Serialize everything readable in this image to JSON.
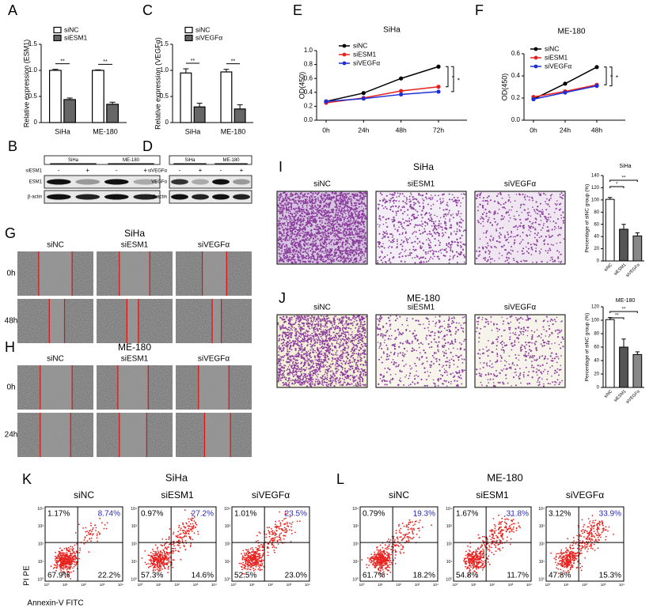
{
  "chart_data": [
    {
      "label": "A",
      "type": "bar",
      "ylabel": "Relative expression (ESM1)",
      "categories": [
        "SiHa",
        "ME-180"
      ],
      "series": [
        {
          "name": "siNC",
          "color": "#ffffff",
          "values": [
            1.0,
            1.0
          ],
          "errors": [
            0.02,
            0.01
          ]
        },
        {
          "name": "siESM1",
          "color": "#666666",
          "values": [
            0.44,
            0.35
          ],
          "errors": [
            0.03,
            0.04
          ]
        }
      ],
      "ylim": [
        0,
        1.5
      ],
      "yticks": [
        0,
        0.5,
        {
          "value": 1,
          "label": "1.0"
        },
        1.5
      ],
      "annotations": [
        "**",
        "**"
      ]
    },
    {
      "label": "C",
      "type": "bar",
      "ylabel": "Relative expression (VEGFα)",
      "categories": [
        "SiHa",
        "ME-180"
      ],
      "series": [
        {
          "name": "siNC",
          "color": "#ffffff",
          "values": [
            0.95,
            0.97
          ],
          "errors": [
            0.08,
            0.05
          ]
        },
        {
          "name": "siVEGFα",
          "color": "#666666",
          "values": [
            0.3,
            0.26
          ],
          "errors": [
            0.07,
            0.08
          ]
        }
      ],
      "ylim": [
        0,
        1.5
      ],
      "yticks": [
        0,
        0.5,
        {
          "value": 1,
          "label": "1.0"
        },
        1.5
      ],
      "annotations": [
        "**",
        "**"
      ]
    },
    {
      "label": "E",
      "type": "line",
      "title": "SiHa",
      "ylabel": "OD(450)",
      "categories": [
        "0h",
        "24h",
        "48h",
        "72h"
      ],
      "series": [
        {
          "name": "siNC",
          "color": "#000000",
          "values": [
            0.27,
            0.39,
            0.6,
            0.77
          ]
        },
        {
          "name": "siESM1",
          "color": "#e8221c",
          "values": [
            0.25,
            0.32,
            0.42,
            0.48
          ]
        },
        {
          "name": "siVEGFα",
          "color": "#1f2fd6",
          "values": [
            0.27,
            0.31,
            0.37,
            0.41
          ]
        }
      ],
      "ylim": [
        0,
        1
      ],
      "yticks": [
        {
          "value": 0,
          "label": "0.0"
        },
        0.2,
        0.4,
        0.6,
        0.8,
        {
          "value": 1,
          "label": "1.0"
        }
      ],
      "annotations": [
        "*",
        "*"
      ]
    },
    {
      "label": "F",
      "type": "line",
      "title": "ME-180",
      "ylabel": "OD(450)",
      "categories": [
        "0h",
        "24h",
        "48h"
      ],
      "series": [
        {
          "name": "siNC",
          "color": "#000000",
          "values": [
            0.19,
            0.33,
            0.48
          ]
        },
        {
          "name": "siESM1",
          "color": "#e8221c",
          "values": [
            0.21,
            0.26,
            0.32
          ]
        },
        {
          "name": "siVEGFα",
          "color": "#1f2fd6",
          "values": [
            0.19,
            0.25,
            0.31
          ]
        }
      ],
      "ylim": [
        0,
        0.6
      ],
      "yticks": [
        {
          "value": 0,
          "label": "0.0"
        },
        0.2,
        0.4,
        0.6
      ],
      "annotations": [
        "*",
        "*"
      ]
    },
    {
      "type": "bar",
      "title": "SiHa",
      "ylabel": "Percentage of siNC group (%)",
      "categories": [
        "siNC",
        "siESM1",
        "siVEGFα"
      ],
      "values": [
        101,
        52,
        41
      ],
      "errors": [
        3,
        8,
        5
      ],
      "colors": [
        "#ffffff",
        "#555555",
        "#888888"
      ],
      "ylim": [
        0,
        140
      ],
      "yticks": [
        0,
        20,
        40,
        60,
        80,
        100,
        120,
        140
      ],
      "annotations": [
        "*",
        "**"
      ]
    },
    {
      "type": "bar",
      "title": "ME-180",
      "ylabel": "Percentage of siNC group (%)",
      "categories": [
        "siNC",
        "siESM1",
        "siVEGFα"
      ],
      "values": [
        101,
        60,
        49
      ],
      "errors": [
        3,
        12,
        4
      ],
      "colors": [
        "#ffffff",
        "#555555",
        "#888888"
      ],
      "ylim": [
        0,
        120
      ],
      "yticks": [
        0,
        20,
        40,
        60,
        80,
        100,
        120
      ],
      "annotations": [
        "**",
        "**"
      ]
    }
  ],
  "blots": [
    {
      "label": "B",
      "treatment": "siESM1",
      "groups": [
        "SiHa",
        "ME-180"
      ],
      "signs": [
        "-",
        "+",
        "-",
        "+"
      ],
      "proteins": [
        "ESM1",
        "β-actin"
      ]
    },
    {
      "label": "D",
      "treatment": "siVEGFα",
      "groups": [
        "SiHa",
        "ME-180"
      ],
      "signs": [
        "-",
        "+",
        "-",
        "+"
      ],
      "proteins": [
        "VEGFα",
        "β-actin"
      ]
    }
  ],
  "migration": [
    {
      "label": "G",
      "title": "SiHa",
      "conditions": [
        "siNC",
        "siESM1",
        "siVEGFα"
      ],
      "times": [
        "0h",
        "48h"
      ]
    },
    {
      "label": "H",
      "title": "ME-180",
      "conditions": [
        "siNC",
        "siESM1",
        "siVEGFα"
      ],
      "times": [
        "0h",
        "24h"
      ]
    }
  ],
  "invasion": [
    {
      "label": "I",
      "title": "SiHa",
      "conditions": [
        "siNC",
        "siESM1",
        "siVEGFα"
      ]
    },
    {
      "label": "J",
      "title": "ME-180",
      "conditions": [
        "siNC",
        "siESM1",
        "siVEGFα"
      ]
    }
  ],
  "apoptosis": [
    {
      "label": "K",
      "title": "SiHa",
      "conditions": [
        "siNC",
        "siESM1",
        "siVEGFα"
      ],
      "quadrants": [
        [
          "1.17%",
          "8.74%",
          "67.9%",
          "22.2%"
        ],
        [
          "0.97%",
          "27.2%",
          "57.3%",
          "14.6%"
        ],
        [
          "1.01%",
          "23.5%",
          "52.5%",
          "23.0%"
        ]
      ],
      "y_axis_label": "PI  PE",
      "x_axis_label": "Annexin-V  FITC",
      "axis_ticks": [
        "10⁰",
        "10¹",
        "10²",
        "10³",
        "10⁴"
      ]
    },
    {
      "label": "L",
      "title": "ME-180",
      "conditions": [
        "siNC",
        "siESM1",
        "siVEGFα"
      ],
      "quadrants": [
        [
          "0.79%",
          "19.3%",
          "61.7%",
          "18.2%"
        ],
        [
          "1.67%",
          "31.8%",
          "54.8%",
          "11.7%"
        ],
        [
          "3.12%",
          "33.9%",
          "47.8%",
          "15.3%"
        ]
      ],
      "axis_ticks": [
        "10⁰",
        "10¹",
        "10²",
        "10³",
        "10⁴"
      ]
    }
  ]
}
